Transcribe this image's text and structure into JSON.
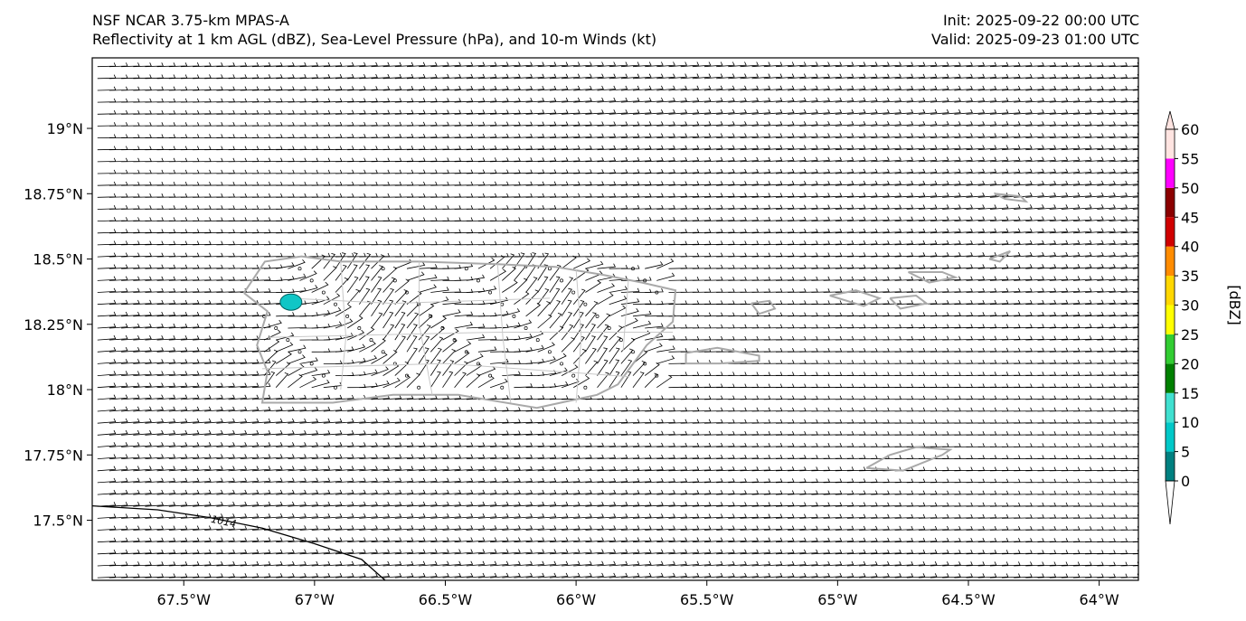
{
  "header": {
    "model": "NSF NCAR 3.75-km MPAS-A",
    "fields": "Reflectivity at 1 km AGL (dBZ), Sea-Level Pressure (hPa), and 10-m Winds (kt)",
    "init": "Init: 2025-09-22 00:00 UTC",
    "valid": "Valid: 2025-09-23 01:00 UTC"
  },
  "map": {
    "lon_range": [
      -67.85,
      -63.85
    ],
    "lat_range": [
      17.27,
      19.27
    ],
    "lon_ticks": [
      {
        "value": -67.5,
        "label": "67.5°W"
      },
      {
        "value": -67.0,
        "label": "67°W"
      },
      {
        "value": -66.5,
        "label": "66.5°W"
      },
      {
        "value": -66.0,
        "label": "66°W"
      },
      {
        "value": -65.5,
        "label": "65.5°W"
      },
      {
        "value": -65.0,
        "label": "65°W"
      },
      {
        "value": -64.5,
        "label": "64.5°W"
      },
      {
        "value": -64.0,
        "label": "64°W"
      }
    ],
    "lat_ticks": [
      {
        "value": 19.0,
        "label": "19°N"
      },
      {
        "value": 18.75,
        "label": "18.75°N"
      },
      {
        "value": 18.5,
        "label": "18.5°N"
      },
      {
        "value": 18.25,
        "label": "18.25°N"
      },
      {
        "value": 18.0,
        "label": "18°N"
      },
      {
        "value": 17.75,
        "label": "17.75°N"
      },
      {
        "value": 17.5,
        "label": "17.5°N"
      }
    ],
    "isobar": {
      "label": "1014",
      "color": "#000000"
    },
    "coast_color": "#a9a9a9",
    "echo_color": "#10c6c6"
  },
  "colorbar": {
    "label": "[dBZ]",
    "levels": [
      0,
      5,
      10,
      15,
      20,
      25,
      30,
      35,
      40,
      45,
      50,
      55,
      60
    ],
    "colors": [
      "#ffffff",
      "#008080",
      "#00c8c8",
      "#40e0d0",
      "#008000",
      "#32cd32",
      "#ffff00",
      "#ffd700",
      "#ff8c00",
      "#d00000",
      "#8b0000",
      "#ff00ff",
      "#ffe4e1"
    ]
  }
}
